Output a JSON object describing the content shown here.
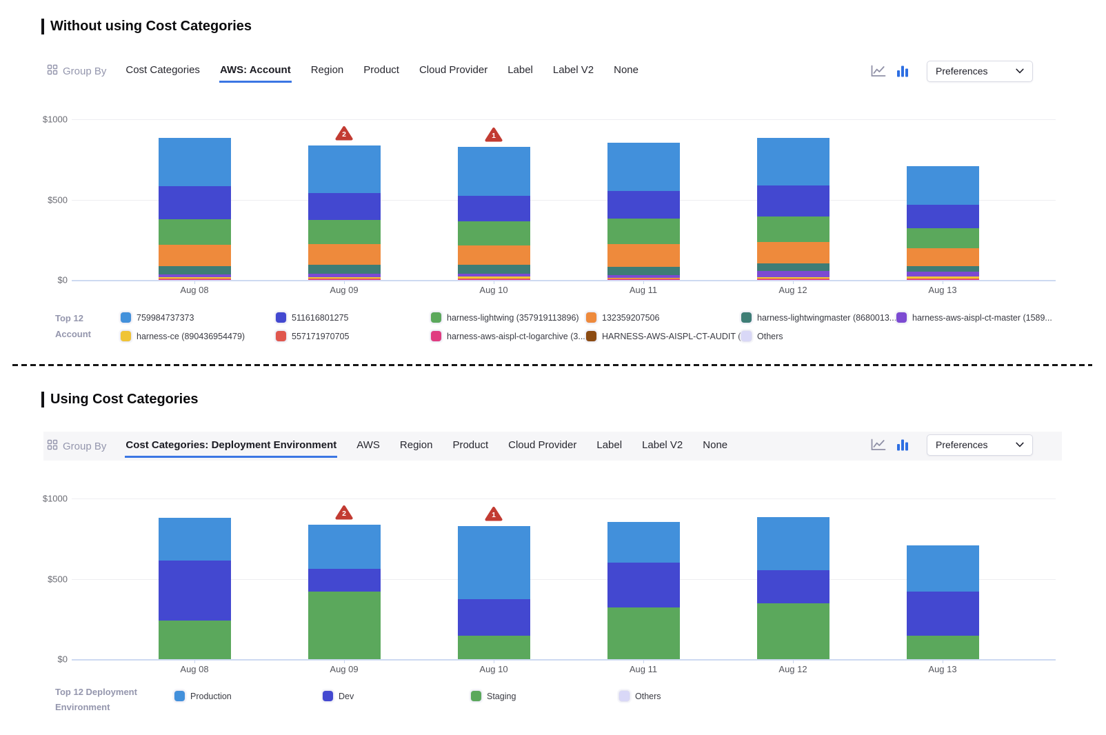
{
  "colors": {
    "accent_blue": "#3b76e3",
    "anomaly_red": "#c23b32",
    "axis_zero_line": "#cdd9f1",
    "gridline": "#ededf1"
  },
  "sections": [
    {
      "title": "Without using Cost Categories",
      "toolbar": {
        "group_by_label": "Group By",
        "tabs": [
          {
            "label": "Cost Categories",
            "active": false
          },
          {
            "label": "AWS: Account",
            "active": true
          },
          {
            "label": "Region",
            "active": false
          },
          {
            "label": "Product",
            "active": false
          },
          {
            "label": "Cloud Provider",
            "active": false
          },
          {
            "label": "Label",
            "active": false
          },
          {
            "label": "Label V2",
            "active": false
          },
          {
            "label": "None",
            "active": false
          }
        ],
        "view_toggles": [
          "line-chart",
          "bar-chart"
        ],
        "active_view": "bar-chart",
        "preferences_label": "Preferences"
      },
      "legend_title": "Top 12 Account",
      "legend": [
        {
          "name": "759984737373",
          "color": "#4290db"
        },
        {
          "name": "511616801275",
          "color": "#4348d0"
        },
        {
          "name": "harness-lightwing (357919113896)",
          "color": "#5ba85c"
        },
        {
          "name": "132359207506",
          "color": "#ee8a3c"
        },
        {
          "name": "harness-lightwingmaster (8680013...",
          "color": "#3e7d76"
        },
        {
          "name": "harness-aws-aispl-ct-master (1589...",
          "color": "#7c4ad2"
        },
        {
          "name": "harness-ce (890436954479)",
          "color": "#f0c436"
        },
        {
          "name": "557171970705",
          "color": "#e0574e"
        },
        {
          "name": "harness-aws-aispl-ct-logarchive (3...",
          "color": "#e03c80"
        },
        {
          "name": "HARNESS-AWS-AISPL-CT-AUDIT (...",
          "color": "#8b4b12"
        },
        {
          "name": "Others",
          "color": "#d9d8f7"
        }
      ]
    },
    {
      "title": "Using Cost Categories",
      "toolbar": {
        "group_by_label": "Group By",
        "tabs": [
          {
            "label": "Cost Categories: Deployment Environment",
            "active": true
          },
          {
            "label": "AWS",
            "active": false
          },
          {
            "label": "Region",
            "active": false
          },
          {
            "label": "Product",
            "active": false
          },
          {
            "label": "Cloud Provider",
            "active": false
          },
          {
            "label": "Label",
            "active": false
          },
          {
            "label": "Label V2",
            "active": false
          },
          {
            "label": "None",
            "active": false
          }
        ],
        "view_toggles": [
          "line-chart",
          "bar-chart"
        ],
        "active_view": "bar-chart",
        "preferences_label": "Preferences"
      },
      "legend_title": "Top 12 Deployment Environment",
      "legend": [
        {
          "name": "Production",
          "color": "#4290db"
        },
        {
          "name": "Dev",
          "color": "#4348d0"
        },
        {
          "name": "Staging",
          "color": "#5ba85c"
        },
        {
          "name": "Others",
          "color": "#d9d8f7"
        }
      ]
    }
  ],
  "chart_data": [
    {
      "type": "bar",
      "stacked": true,
      "x": [
        "Aug 08",
        "Aug 09",
        "Aug 10",
        "Aug 11",
        "Aug 12",
        "Aug 13"
      ],
      "ylim": [
        0,
        1000
      ],
      "y_ticks": [
        {
          "value": 1000,
          "label": "$1000"
        },
        {
          "value": 500,
          "label": "$500"
        },
        {
          "value": 0,
          "label": "$0"
        }
      ],
      "grid": true,
      "legend_position": "bottom",
      "series_order": "bottom-to-top",
      "series": [
        {
          "name": "Others",
          "color": "#d9d8f7",
          "values": [
            2,
            2,
            2,
            2,
            2,
            2
          ]
        },
        {
          "name": "HARNESS-AWS-AISPL-CT-AUDIT (...",
          "color": "#8b4b12",
          "values": [
            1,
            1,
            1,
            1,
            1,
            1
          ]
        },
        {
          "name": "harness-aws-aispl-ct-logarchive (3...",
          "color": "#e03c80",
          "values": [
            1,
            1,
            1,
            1,
            1,
            1
          ]
        },
        {
          "name": "557171970705",
          "color": "#e0574e",
          "values": [
            5,
            5,
            6,
            3,
            4,
            3
          ]
        },
        {
          "name": "harness-ce (890436954479)",
          "color": "#f0c436",
          "values": [
            8,
            10,
            10,
            5,
            9,
            14
          ]
        },
        {
          "name": "harness-aws-aispl-ct-master (1589...",
          "color": "#7c4ad2",
          "values": [
            19,
            20,
            19,
            19,
            40,
            30
          ]
        },
        {
          "name": "harness-lightwingmaster (8680013...",
          "color": "#3e7d76",
          "values": [
            50,
            55,
            54,
            52,
            46,
            36
          ]
        },
        {
          "name": "132359207506",
          "color": "#ee8a3c",
          "values": [
            133,
            130,
            123,
            142,
            133,
            110
          ]
        },
        {
          "name": "harness-lightwing (357919113896)",
          "color": "#5ba85c",
          "values": [
            157,
            150,
            149,
            158,
            160,
            124
          ]
        },
        {
          "name": "511616801275",
          "color": "#4348d0",
          "values": [
            207,
            165,
            157,
            172,
            192,
            145
          ]
        },
        {
          "name": "759984737373",
          "color": "#4290db",
          "values": [
            299,
            298,
            308,
            300,
            297,
            242
          ]
        }
      ],
      "anomalies": [
        {
          "x": "Aug 09",
          "x_index": 1,
          "count": 2
        },
        {
          "x": "Aug 10",
          "x_index": 2,
          "count": 1
        }
      ]
    },
    {
      "type": "bar",
      "stacked": true,
      "x": [
        "Aug 08",
        "Aug 09",
        "Aug 10",
        "Aug 11",
        "Aug 12",
        "Aug 13"
      ],
      "ylim": [
        0,
        1000
      ],
      "y_ticks": [
        {
          "value": 1000,
          "label": "$1000"
        },
        {
          "value": 500,
          "label": "$500"
        },
        {
          "value": 0,
          "label": "$0"
        }
      ],
      "grid": true,
      "legend_position": "bottom",
      "series_order": "bottom-to-top",
      "series": [
        {
          "name": "Staging",
          "color": "#5ba85c",
          "values": [
            240,
            419,
            147,
            323,
            348,
            146
          ]
        },
        {
          "name": "Dev",
          "color": "#4348d0",
          "values": [
            375,
            142,
            228,
            278,
            207,
            275
          ]
        },
        {
          "name": "Production",
          "color": "#4290db",
          "values": [
            263,
            275,
            455,
            252,
            329,
            287
          ]
        }
      ],
      "anomalies": [
        {
          "x": "Aug 09",
          "x_index": 1,
          "count": 2
        },
        {
          "x": "Aug 10",
          "x_index": 2,
          "count": 1
        }
      ]
    }
  ]
}
